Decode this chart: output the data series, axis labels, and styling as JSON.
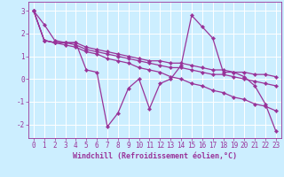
{
  "xlabel": "Windchill (Refroidissement éolien,°C)",
  "background_color": "#cceeff",
  "grid_color": "#ffffff",
  "line_color": "#993399",
  "xlim": [
    -0.5,
    23.5
  ],
  "ylim": [
    -2.6,
    3.4
  ],
  "xticks": [
    0,
    1,
    2,
    3,
    4,
    5,
    6,
    7,
    8,
    9,
    10,
    11,
    12,
    13,
    14,
    15,
    16,
    17,
    18,
    19,
    20,
    21,
    22,
    23
  ],
  "yticks": [
    -2,
    -1,
    0,
    1,
    2,
    3
  ],
  "series": [
    [
      3.0,
      2.4,
      1.7,
      1.6,
      1.6,
      0.4,
      0.3,
      -2.1,
      -1.5,
      -0.4,
      0.0,
      -1.3,
      -0.2,
      0.0,
      0.6,
      2.8,
      2.3,
      1.8,
      0.3,
      0.3,
      0.1,
      -0.3,
      -1.1,
      -2.3
    ],
    [
      3.0,
      1.7,
      1.6,
      1.6,
      1.6,
      1.4,
      1.3,
      1.2,
      1.1,
      1.0,
      0.9,
      0.8,
      0.8,
      0.7,
      0.7,
      0.6,
      0.5,
      0.4,
      0.4,
      0.3,
      0.3,
      0.2,
      0.2,
      0.1
    ],
    [
      3.0,
      1.7,
      1.6,
      1.6,
      1.5,
      1.3,
      1.2,
      1.1,
      1.0,
      0.9,
      0.8,
      0.7,
      0.6,
      0.5,
      0.5,
      0.4,
      0.3,
      0.2,
      0.2,
      0.1,
      0.0,
      -0.1,
      -0.2,
      -0.3
    ],
    [
      3.0,
      1.7,
      1.6,
      1.5,
      1.4,
      1.2,
      1.1,
      0.9,
      0.8,
      0.7,
      0.5,
      0.4,
      0.3,
      0.1,
      0.0,
      -0.2,
      -0.3,
      -0.5,
      -0.6,
      -0.8,
      -0.9,
      -1.1,
      -1.2,
      -1.4
    ]
  ],
  "figsize": [
    3.2,
    2.0
  ],
  "dpi": 100,
  "xlabel_fontsize": 6.0,
  "tick_fontsize": 5.5,
  "linewidth": 0.9,
  "markersize": 2.2
}
